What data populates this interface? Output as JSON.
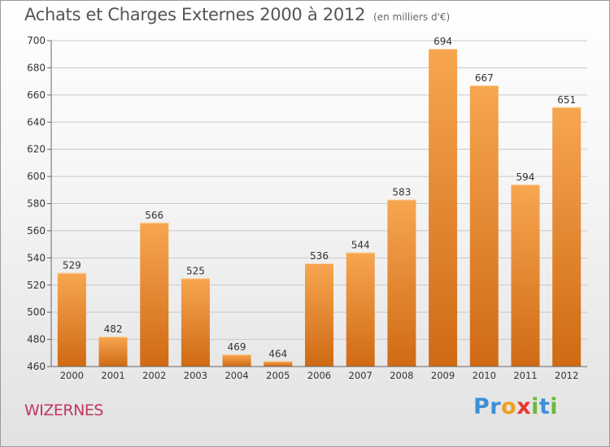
{
  "header": {
    "title": "Achats et Charges Externes 2000 à 2012",
    "subtitle": "(en milliers d'€)"
  },
  "footer": {
    "commune": "WIZERNES",
    "brand": "Proxiti",
    "brand_letters": [
      {
        "ch": "P",
        "color": "#3d8fd6"
      },
      {
        "ch": "r",
        "color": "#3d8fd6"
      },
      {
        "ch": "o",
        "color": "#f0a020"
      },
      {
        "ch": "x",
        "color": "#e8362e"
      },
      {
        "ch": "i",
        "color": "#6cb83a"
      },
      {
        "ch": "t",
        "color": "#3d8fd6"
      },
      {
        "ch": "i",
        "color": "#6cb83a"
      }
    ]
  },
  "colors": {
    "bar_light": "#f7a650",
    "bar_dark": "#d06a14",
    "grid": "#c8c8c8",
    "axis": "#666666",
    "text": "#333333"
  },
  "chart_data": {
    "type": "bar",
    "categories": [
      "2000",
      "2001",
      "2002",
      "2003",
      "2004",
      "2005",
      "2006",
      "2007",
      "2008",
      "2009",
      "2010",
      "2011",
      "2012"
    ],
    "values": [
      529,
      482,
      566,
      525,
      469,
      464,
      536,
      544,
      583,
      694,
      667,
      594,
      651
    ],
    "title": "Achats et Charges Externes 2000 à 2012",
    "subtitle": "(en milliers d'€)",
    "ylim": [
      460,
      700
    ],
    "yticks": [
      460,
      480,
      500,
      520,
      540,
      560,
      580,
      600,
      620,
      640,
      660,
      680,
      700
    ],
    "grid": true,
    "legend": "none"
  }
}
